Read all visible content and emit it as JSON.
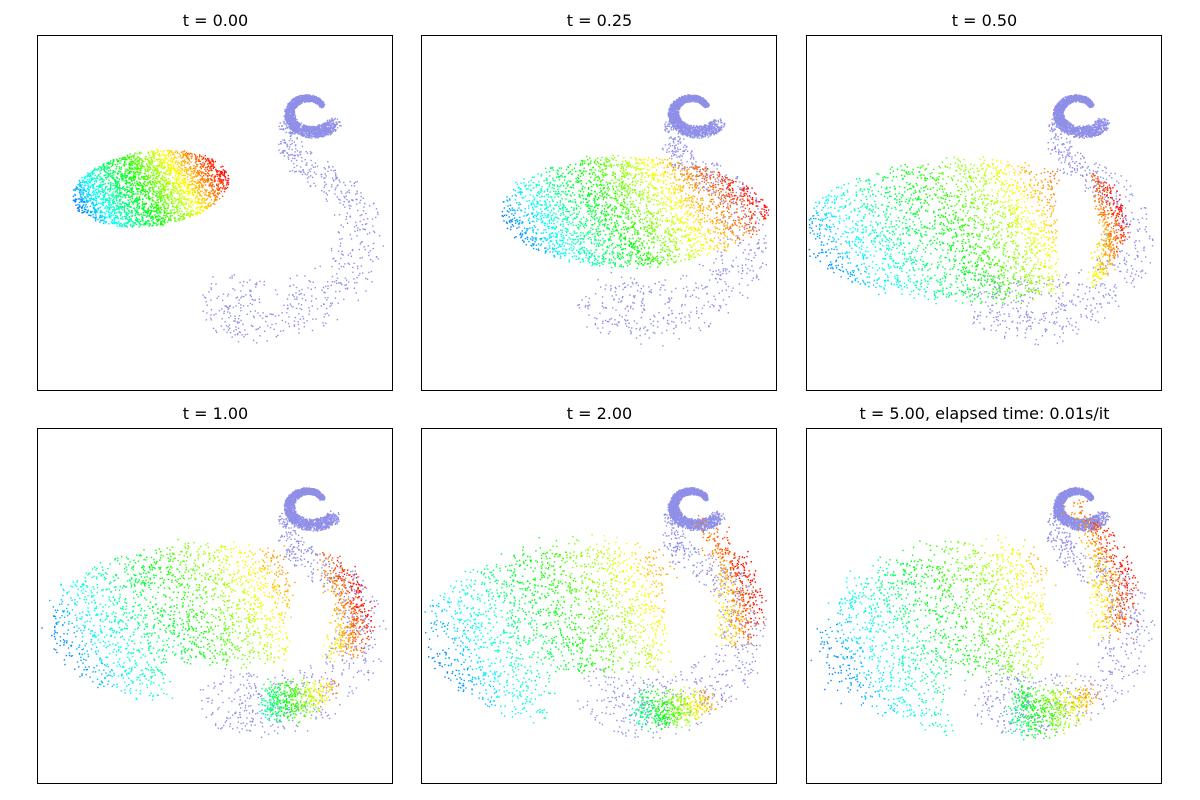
{
  "figure": {
    "panels": [
      {
        "title": "t = 0.00"
      },
      {
        "title": "t = 0.25"
      },
      {
        "title": "t = 0.50"
      },
      {
        "title": "t = 1.00"
      },
      {
        "title": "t = 2.00"
      },
      {
        "title": "t = 5.00, elapsed time: 0.01s/it"
      }
    ]
  },
  "chart_data": {
    "type": "scatter",
    "times": [
      0.0,
      0.25,
      0.5,
      1.0,
      2.0,
      5.0
    ],
    "elapsed_time": "0.01s/it",
    "grid": false,
    "axis_ticks": false,
    "target_color": "#8f8fe8",
    "source_colormap": [
      "#ff00ff",
      "#8000ff",
      "#0000ff",
      "#00ffff",
      "#00ff00",
      "#ffff00",
      "#ff8000",
      "#ff0000"
    ],
    "series": [
      {
        "distribution": "target, swirl-shaped point cloud",
        "color": "#8f8fe8"
      },
      {
        "distribution": "source, ellipse transported over time, rainbow colored",
        "colormap": "hsv"
      }
    ]
  }
}
